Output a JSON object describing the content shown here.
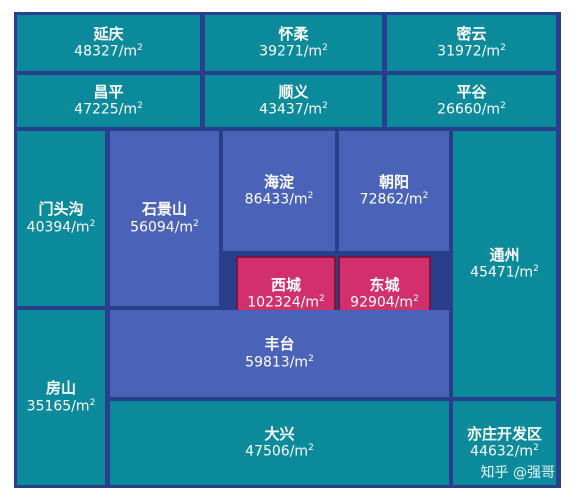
{
  "unit": "/m",
  "unit_sup": "2",
  "districts": [
    {
      "id": "yanqing",
      "name": "延庆",
      "price": "48327"
    },
    {
      "id": "huairou",
      "name": "怀柔",
      "price": "39271"
    },
    {
      "id": "miyun",
      "name": "密云",
      "price": "31972"
    },
    {
      "id": "changping",
      "name": "昌平",
      "price": "47225"
    },
    {
      "id": "shunyi",
      "name": "顺义",
      "price": "43437"
    },
    {
      "id": "pinggu",
      "name": "平谷",
      "price": "26660"
    },
    {
      "id": "mentougou",
      "name": "门头沟",
      "price": "40394"
    },
    {
      "id": "shijingshan",
      "name": "石景山",
      "price": "56094"
    },
    {
      "id": "haidian",
      "name": "海淀",
      "price": "86433"
    },
    {
      "id": "chaoyang",
      "name": "朝阳",
      "price": "72862"
    },
    {
      "id": "tongzhou",
      "name": "通州",
      "price": "45471"
    },
    {
      "id": "xicheng",
      "name": "西城",
      "price": "102324"
    },
    {
      "id": "dongcheng",
      "name": "东城",
      "price": "92904"
    },
    {
      "id": "fangshan",
      "name": "房山",
      "price": "35165"
    },
    {
      "id": "fengtai",
      "name": "丰台",
      "price": "59813"
    },
    {
      "id": "daxing",
      "name": "大兴",
      "price": "47506"
    },
    {
      "id": "yizhuang",
      "name": "亦庄开发区",
      "price": "44632"
    }
  ],
  "watermark": "知乎 @强哥"
}
